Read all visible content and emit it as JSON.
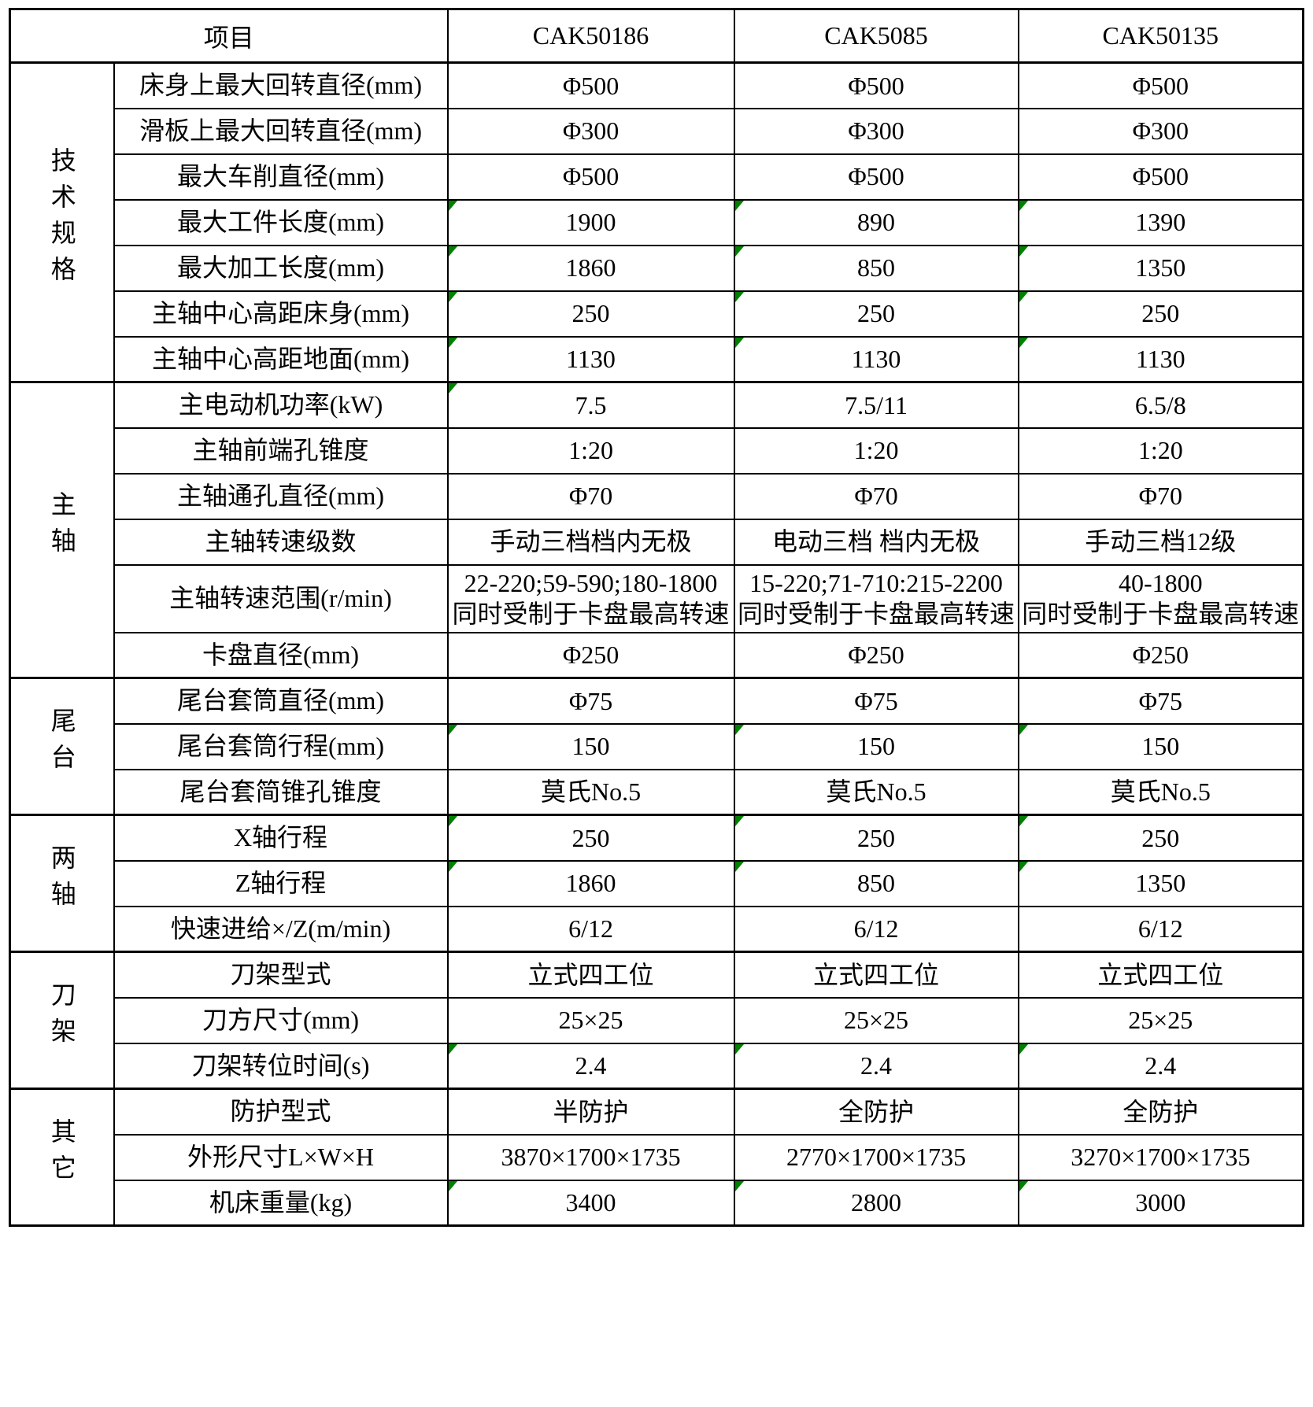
{
  "table": {
    "flag_color": "#008000",
    "header": {
      "item_col": "项目",
      "models": [
        "CAK50186",
        "CAK5085",
        "CAK50135"
      ]
    },
    "groups": [
      {
        "label": "技术规格",
        "rows": [
          {
            "label": "床身上最大回转直径(mm)",
            "values": [
              "Φ500",
              "Φ500",
              "Φ500"
            ],
            "flags": [
              false,
              false,
              false
            ]
          },
          {
            "label": "滑板上最大回转直径(mm)",
            "values": [
              "Φ300",
              "Φ300",
              "Φ300"
            ],
            "flags": [
              false,
              false,
              false
            ]
          },
          {
            "label": "最大车削直径(mm)",
            "values": [
              "Φ500",
              "Φ500",
              "Φ500"
            ],
            "flags": [
              false,
              false,
              false
            ]
          },
          {
            "label": "最大工件长度(mm)",
            "values": [
              "1900",
              "890",
              "1390"
            ],
            "flags": [
              true,
              true,
              true
            ]
          },
          {
            "label": "最大加工长度(mm)",
            "values": [
              "1860",
              "850",
              "1350"
            ],
            "flags": [
              true,
              true,
              true
            ]
          },
          {
            "label": "主轴中心高距床身(mm)",
            "values": [
              "250",
              "250",
              "250"
            ],
            "flags": [
              true,
              true,
              true
            ]
          },
          {
            "label": "主轴中心高距地面(mm)",
            "values": [
              "1130",
              "1130",
              "1130"
            ],
            "flags": [
              true,
              true,
              true
            ]
          }
        ]
      },
      {
        "label": "主轴",
        "rows": [
          {
            "label": "主电动机功率(kW)",
            "values": [
              "7.5",
              "7.5/11",
              "6.5/8"
            ],
            "flags": [
              true,
              false,
              false
            ]
          },
          {
            "label": "主轴前端孔锥度",
            "values": [
              "1:20",
              "1:20",
              "1:20"
            ],
            "flags": [
              false,
              false,
              false
            ]
          },
          {
            "label": "主轴通孔直径(mm)",
            "values": [
              "Φ70",
              "Φ70",
              "Φ70"
            ],
            "flags": [
              false,
              false,
              false
            ]
          },
          {
            "label": "主轴转速级数",
            "values": [
              "手动三档档内无极",
              "电动三档 档内无极",
              "手动三档12级"
            ],
            "flags": [
              false,
              false,
              false
            ]
          },
          {
            "label": "主轴转速范围(r/min)",
            "values": [
              "22-220;59-590;180-1800\n同时受制于卡盘最高转速",
              "15-220;71-710:215-2200\n同时受制于卡盘最高转速",
              "40-1800\n同时受制于卡盘最高转速"
            ],
            "flags": [
              false,
              false,
              false
            ]
          },
          {
            "label": "卡盘直径(mm)",
            "values": [
              "Φ250",
              "Φ250",
              "Φ250"
            ],
            "flags": [
              false,
              false,
              false
            ]
          }
        ]
      },
      {
        "label": "尾台",
        "rows": [
          {
            "label": "尾台套筒直径(mm)",
            "values": [
              "Φ75",
              "Φ75",
              "Φ75"
            ],
            "flags": [
              false,
              false,
              false
            ]
          },
          {
            "label": "尾台套筒行程(mm)",
            "values": [
              "150",
              "150",
              "150"
            ],
            "flags": [
              true,
              true,
              true
            ]
          },
          {
            "label": "尾台套简锥孔锥度",
            "values": [
              "莫氏No.5",
              "莫氏No.5",
              "莫氏No.5"
            ],
            "flags": [
              false,
              false,
              false
            ]
          }
        ]
      },
      {
        "label": "两轴",
        "rows": [
          {
            "label": "X轴行程",
            "values": [
              "250",
              "250",
              "250"
            ],
            "flags": [
              true,
              true,
              true
            ]
          },
          {
            "label": "Z轴行程",
            "values": [
              "1860",
              "850",
              "1350"
            ],
            "flags": [
              true,
              true,
              true
            ]
          },
          {
            "label": "快速进给×/Z(m/min)",
            "values": [
              "6/12",
              "6/12",
              "6/12"
            ],
            "flags": [
              false,
              false,
              false
            ]
          }
        ]
      },
      {
        "label": "刀架",
        "rows": [
          {
            "label": "刀架型式",
            "values": [
              "立式四工位",
              "立式四工位",
              "立式四工位"
            ],
            "flags": [
              false,
              false,
              false
            ]
          },
          {
            "label": "刀方尺寸(mm)",
            "values": [
              "25×25",
              "25×25",
              "25×25"
            ],
            "flags": [
              false,
              false,
              false
            ]
          },
          {
            "label": "刀架转位时间(s)",
            "values": [
              "2.4",
              "2.4",
              "2.4"
            ],
            "flags": [
              true,
              true,
              true
            ]
          }
        ]
      },
      {
        "label": "其它",
        "rows": [
          {
            "label": "防护型式",
            "values": [
              "半防护",
              "全防护",
              "全防护"
            ],
            "flags": [
              false,
              false,
              false
            ]
          },
          {
            "label": "外形尺寸L×W×H",
            "values": [
              "3870×1700×1735",
              "2770×1700×1735",
              "3270×1700×1735"
            ],
            "flags": [
              false,
              false,
              false
            ]
          },
          {
            "label": "机床重量(kg)",
            "values": [
              "3400",
              "2800",
              "3000"
            ],
            "flags": [
              true,
              true,
              true
            ]
          }
        ]
      }
    ]
  }
}
